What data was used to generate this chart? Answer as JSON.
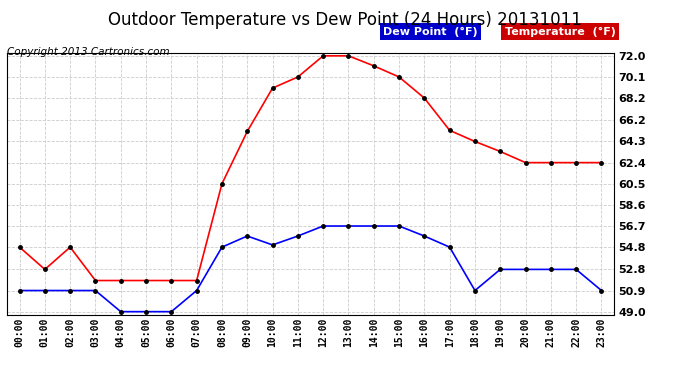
{
  "title": "Outdoor Temperature vs Dew Point (24 Hours) 20131011",
  "copyright": "Copyright 2013 Cartronics.com",
  "hours": [
    "00:00",
    "01:00",
    "02:00",
    "03:00",
    "04:00",
    "05:00",
    "06:00",
    "07:00",
    "08:00",
    "09:00",
    "10:00",
    "11:00",
    "12:00",
    "13:00",
    "14:00",
    "15:00",
    "16:00",
    "17:00",
    "18:00",
    "19:00",
    "20:00",
    "21:00",
    "22:00",
    "23:00"
  ],
  "temperature": [
    54.8,
    52.8,
    54.8,
    51.8,
    51.8,
    51.8,
    51.8,
    51.8,
    60.5,
    65.2,
    69.1,
    70.1,
    72.0,
    72.0,
    71.1,
    70.1,
    68.2,
    65.3,
    64.3,
    63.4,
    62.4,
    62.4,
    62.4,
    62.4
  ],
  "dew_point": [
    50.9,
    50.9,
    50.9,
    50.9,
    49.0,
    49.0,
    49.0,
    50.9,
    54.8,
    55.8,
    55.0,
    55.8,
    56.7,
    56.7,
    56.7,
    56.7,
    55.8,
    54.8,
    50.9,
    52.8,
    52.8,
    52.8,
    52.8,
    50.9
  ],
  "temp_color": "#ff0000",
  "dew_color": "#0000ff",
  "marker_color": "#000000",
  "ylim_min": 49.0,
  "ylim_max": 72.0,
  "yticks": [
    49.0,
    50.9,
    52.8,
    54.8,
    56.7,
    58.6,
    60.5,
    62.4,
    64.3,
    66.2,
    68.2,
    70.1,
    72.0
  ],
  "background_color": "#ffffff",
  "grid_color": "#cccccc",
  "legend_dew_bg": "#0000cc",
  "legend_temp_bg": "#cc0000",
  "legend_text_color": "#ffffff",
  "title_fontsize": 12,
  "copyright_fontsize": 7.5
}
